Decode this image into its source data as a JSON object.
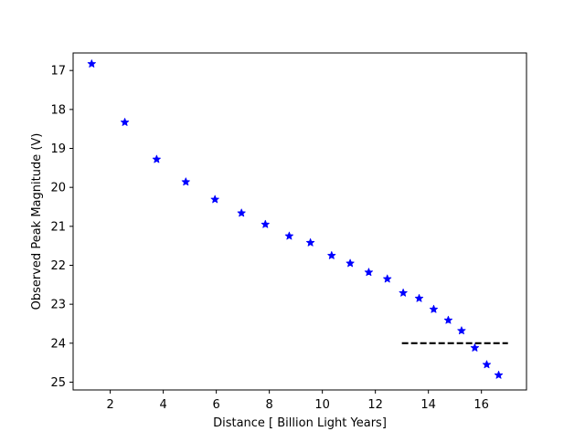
{
  "chart_data": {
    "type": "scatter",
    "xlabel": "Distance [ Billion Light Years]",
    "ylabel": "Observed Peak Magnitude (V)",
    "xlim": [
      0.6,
      17.7
    ],
    "ylim": [
      16.55,
      25.2
    ],
    "y_inverted": true,
    "grid": false,
    "x_ticks": [
      2,
      4,
      6,
      8,
      10,
      12,
      14,
      16
    ],
    "y_ticks": [
      17,
      18,
      19,
      20,
      21,
      22,
      23,
      24,
      25
    ],
    "series": [
      {
        "marker": "star",
        "color": "#0000ff",
        "points": [
          [
            1.3,
            16.83
          ],
          [
            2.55,
            18.33
          ],
          [
            3.75,
            19.28
          ],
          [
            4.85,
            19.86
          ],
          [
            5.95,
            20.31
          ],
          [
            6.95,
            20.66
          ],
          [
            7.85,
            20.95
          ],
          [
            8.75,
            21.25
          ],
          [
            9.55,
            21.42
          ],
          [
            10.35,
            21.75
          ],
          [
            11.05,
            21.95
          ],
          [
            11.75,
            22.18
          ],
          [
            12.45,
            22.35
          ],
          [
            13.05,
            22.71
          ],
          [
            13.65,
            22.85
          ],
          [
            14.2,
            23.13
          ],
          [
            14.75,
            23.41
          ],
          [
            15.25,
            23.68
          ],
          [
            15.75,
            24.12
          ],
          [
            16.2,
            24.55
          ],
          [
            16.65,
            24.82
          ]
        ]
      }
    ],
    "reference_line": {
      "style": "dashed",
      "color": "#000000",
      "x": [
        13.0,
        17.0
      ],
      "y": [
        24.0,
        24.0
      ]
    }
  }
}
